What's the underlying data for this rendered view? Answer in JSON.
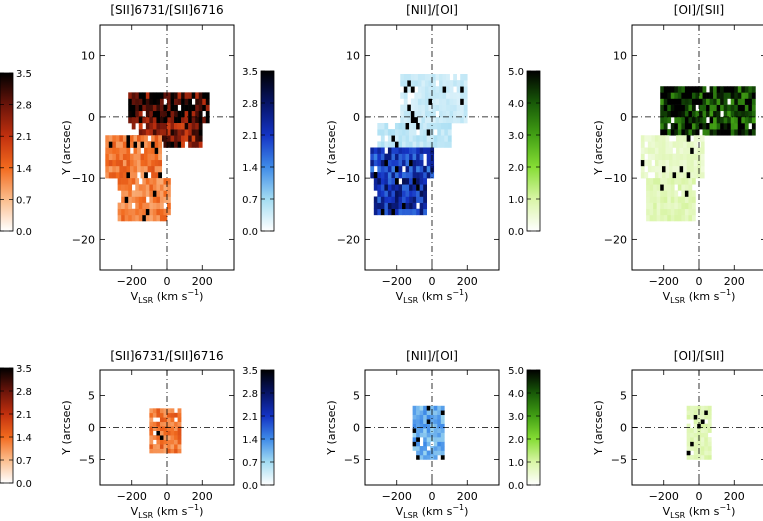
{
  "figure": {
    "x_axis_label_main": "V",
    "x_axis_label_sub": "LSR",
    "x_axis_label_units": "(km s",
    "x_axis_label_exp": "−1",
    "x_axis_label_close": ")",
    "y_axis_label": "Y (arcsec)"
  },
  "colormaps": {
    "red": [
      "#ffffff",
      "#fbbd8c",
      "#f26a1e",
      "#c2300e",
      "#6a140a",
      "#000000"
    ],
    "blue": [
      "#ffffff",
      "#a3dcf2",
      "#3f8be8",
      "#1433c4",
      "#071466",
      "#000000"
    ],
    "green": [
      "#ffffff",
      "#d9f5a6",
      "#86dd34",
      "#42a014",
      "#185a08",
      "#000000"
    ]
  },
  "chart_data": [
    {
      "id": "top-sii-ratio",
      "type": "heatmap",
      "title": "[SII]6731/[SII]6716",
      "colormap": "red",
      "colorbar": {
        "range": [
          0.0,
          3.5
        ],
        "ticks": [
          "0.0",
          "0.7",
          "1.4",
          "2.1",
          "2.8",
          "3.5"
        ]
      },
      "xlabel": "VLSR (km s−1)",
      "ylabel": "Y (arcsec)",
      "xlim": [
        -380,
        380
      ],
      "ylim": [
        -25,
        15
      ],
      "xticks": [
        -200,
        0,
        200
      ],
      "yticks": [
        -20,
        -10,
        0,
        10
      ],
      "reference_lines": {
        "x": 0,
        "y": 0
      },
      "emission_regions": [
        {
          "v_range": [
            -220,
            240
          ],
          "y_range": [
            -1,
            4
          ],
          "value": 3.1
        },
        {
          "v_range": [
            -200,
            190
          ],
          "y_range": [
            -5,
            -1
          ],
          "value": 2.6
        },
        {
          "v_range": [
            -350,
            -30
          ],
          "y_range": [
            -10,
            -3
          ],
          "value": 1.3
        },
        {
          "v_range": [
            -280,
            20
          ],
          "y_range": [
            -17,
            -10
          ],
          "value": 1.2
        }
      ]
    },
    {
      "id": "top-nii-oi",
      "type": "heatmap",
      "title": "[NII]/[OI]",
      "colormap": "blue",
      "colorbar": {
        "range": [
          0.0,
          3.5
        ],
        "ticks": [
          "0.0",
          "0.7",
          "1.4",
          "2.1",
          "2.8",
          "3.5"
        ]
      },
      "xlabel": "VLSR (km s−1)",
      "ylabel": "Y (arcsec)",
      "xlim": [
        -380,
        380
      ],
      "ylim": [
        -25,
        15
      ],
      "xticks": [
        -200,
        0,
        200
      ],
      "yticks": [
        -20,
        -10,
        0,
        10
      ],
      "reference_lines": {
        "x": 0,
        "y": 0
      },
      "emission_regions": [
        {
          "v_range": [
            -180,
            200
          ],
          "y_range": [
            -1,
            7
          ],
          "value": 0.4
        },
        {
          "v_range": [
            -310,
            100
          ],
          "y_range": [
            -5,
            -1
          ],
          "value": 0.5
        },
        {
          "v_range": [
            -350,
            0
          ],
          "y_range": [
            -10,
            -5
          ],
          "value": 2.1
        },
        {
          "v_range": [
            -330,
            -30
          ],
          "y_range": [
            -16,
            -10
          ],
          "value": 2.3
        }
      ]
    },
    {
      "id": "top-oi-sii",
      "type": "heatmap",
      "title": "[OI]/[SII]",
      "colormap": "green",
      "colorbar": {
        "range": [
          0.0,
          5.0
        ],
        "ticks": [
          "0.0",
          "1.0",
          "2.0",
          "3.0",
          "4.0",
          "5.0"
        ]
      },
      "xlabel": "VLSR (km s−1)",
      "ylabel": "Y (arcsec)",
      "xlim": [
        -380,
        380
      ],
      "ylim": [
        -25,
        15
      ],
      "xticks": [
        -200,
        0,
        200
      ],
      "yticks": [
        -20,
        -10,
        0,
        10
      ],
      "reference_lines": {
        "x": 0,
        "y": 0
      },
      "emission_regions": [
        {
          "v_range": [
            -220,
            310
          ],
          "y_range": [
            -3,
            5
          ],
          "value": 4.3
        },
        {
          "v_range": [
            -330,
            20
          ],
          "y_range": [
            -10,
            -3
          ],
          "value": 0.6
        },
        {
          "v_range": [
            -300,
            -20
          ],
          "y_range": [
            -17,
            -10
          ],
          "value": 0.8
        }
      ]
    },
    {
      "id": "bottom-sii-ratio",
      "type": "heatmap",
      "title": "[SII]6731/[SII]6716",
      "colormap": "red",
      "colorbar": {
        "range": [
          0.0,
          3.5
        ],
        "ticks": [
          "0.0",
          "0.7",
          "1.4",
          "2.1",
          "2.8",
          "3.5"
        ]
      },
      "xlabel": "VLSR (km s−1)",
      "ylabel": "Y (arcsec)",
      "xlim": [
        -380,
        380
      ],
      "ylim": [
        -9,
        9
      ],
      "xticks": [
        -200,
        0,
        200
      ],
      "yticks": [
        -5,
        0,
        5
      ],
      "reference_lines": {
        "x": 0,
        "y": 0
      },
      "emission_regions": [
        {
          "v_range": [
            -100,
            70
          ],
          "y_range": [
            -4,
            3
          ],
          "value": 1.3
        }
      ]
    },
    {
      "id": "bottom-nii-oi",
      "type": "heatmap",
      "title": "[NII]/[OI]",
      "colormap": "blue",
      "colorbar": {
        "range": [
          0.0,
          3.5
        ],
        "ticks": [
          "0.0",
          "0.7",
          "1.4",
          "2.1",
          "2.8",
          "3.5"
        ]
      },
      "xlabel": "VLSR (km s−1)",
      "ylabel": "Y (arcsec)",
      "xlim": [
        -380,
        380
      ],
      "ylim": [
        -9,
        9
      ],
      "xticks": [
        -200,
        0,
        200
      ],
      "yticks": [
        -5,
        0,
        5
      ],
      "reference_lines": {
        "x": 0,
        "y": 0
      },
      "emission_regions": [
        {
          "v_range": [
            -110,
            60
          ],
          "y_range": [
            -5,
            3
          ],
          "value": 1.1
        }
      ]
    },
    {
      "id": "bottom-oi-sii",
      "type": "heatmap",
      "title": "[OI]/[SII]",
      "colormap": "green",
      "colorbar": {
        "range": [
          0.0,
          5.0
        ],
        "ticks": [
          "0.0",
          "1.0",
          "2.0",
          "3.0",
          "4.0",
          "5.0"
        ]
      },
      "xlabel": "VLSR (km s−1)",
      "ylabel": "Y (arcsec)",
      "xlim": [
        -380,
        380
      ],
      "ylim": [
        -9,
        9
      ],
      "xticks": [
        -200,
        0,
        200
      ],
      "yticks": [
        -5,
        0,
        5
      ],
      "reference_lines": {
        "x": 0,
        "y": 0
      },
      "emission_regions": [
        {
          "v_range": [
            -70,
            70
          ],
          "y_range": [
            -5,
            3
          ],
          "value": 0.8
        }
      ]
    }
  ]
}
